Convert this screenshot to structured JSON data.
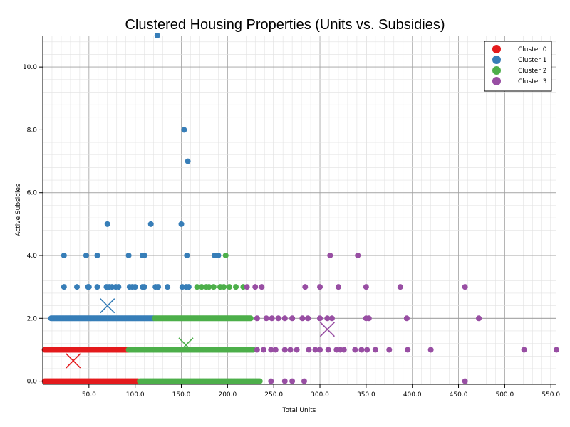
{
  "chart_data": {
    "type": "scatter",
    "title": "Clustered Housing Properties (Units vs. Subsidies)",
    "xlabel": "Total Units",
    "ylabel": "Active Subsidies",
    "xlim": [
      0,
      556
    ],
    "ylim": [
      -0.1,
      11.0
    ],
    "xticks": [
      50,
      100,
      150,
      200,
      250,
      300,
      350,
      400,
      450,
      500,
      550
    ],
    "xtick_labels": [
      "50.0",
      "100.0",
      "150.0",
      "200.0",
      "250.0",
      "300.0",
      "350.0",
      "400.0",
      "450.0",
      "500.0",
      "550.0"
    ],
    "yticks": [
      0,
      2,
      4,
      6,
      8,
      10
    ],
    "ytick_labels": [
      "0.0",
      "2.0",
      "4.0",
      "6.0",
      "8.0",
      "10.0"
    ],
    "grid": true,
    "legend_position": "top-right",
    "colors": {
      "Cluster 0": "#e41a1c",
      "Cluster 1": "#377eb8",
      "Cluster 2": "#4daf4a",
      "Cluster 3": "#984ea3"
    },
    "series": [
      {
        "name": "Cluster 0",
        "ranges": [
          {
            "y": 0,
            "x_from": 2,
            "x_to": 103
          },
          {
            "y": 1,
            "x_from": 2,
            "x_to": 93
          }
        ],
        "points": [],
        "centroid": {
          "x": 33,
          "y": 0.65
        }
      },
      {
        "name": "Cluster 1",
        "ranges": [
          {
            "y": 2,
            "x_from": 9,
            "x_to": 120
          }
        ],
        "points": [
          {
            "x": 124,
            "y": 11
          },
          {
            "x": 153,
            "y": 8
          },
          {
            "x": 157,
            "y": 7
          },
          {
            "x": 70,
            "y": 5
          },
          {
            "x": 117,
            "y": 5
          },
          {
            "x": 150,
            "y": 5
          },
          {
            "x": 23,
            "y": 4
          },
          {
            "x": 47,
            "y": 4
          },
          {
            "x": 59,
            "y": 4
          },
          {
            "x": 93,
            "y": 4
          },
          {
            "x": 108,
            "y": 4
          },
          {
            "x": 110,
            "y": 4
          },
          {
            "x": 156,
            "y": 4
          },
          {
            "x": 186,
            "y": 4
          },
          {
            "x": 190,
            "y": 4
          },
          {
            "x": 23,
            "y": 3
          },
          {
            "x": 37,
            "y": 3
          },
          {
            "x": 49,
            "y": 3
          },
          {
            "x": 50,
            "y": 3
          },
          {
            "x": 59,
            "y": 3
          },
          {
            "x": 69,
            "y": 3
          },
          {
            "x": 72,
            "y": 3
          },
          {
            "x": 75,
            "y": 3
          },
          {
            "x": 79,
            "y": 3
          },
          {
            "x": 82,
            "y": 3
          },
          {
            "x": 94,
            "y": 3
          },
          {
            "x": 97,
            "y": 3
          },
          {
            "x": 100,
            "y": 3
          },
          {
            "x": 108,
            "y": 3
          },
          {
            "x": 110,
            "y": 3
          },
          {
            "x": 122,
            "y": 3
          },
          {
            "x": 125,
            "y": 3
          },
          {
            "x": 135,
            "y": 3
          },
          {
            "x": 151,
            "y": 3
          },
          {
            "x": 155,
            "y": 3
          },
          {
            "x": 158,
            "y": 3
          }
        ],
        "centroid": {
          "x": 70,
          "y": 2.4
        }
      },
      {
        "name": "Cluster 2",
        "ranges": [
          {
            "y": 0,
            "x_from": 105,
            "x_to": 235
          },
          {
            "y": 1,
            "x_from": 93,
            "x_to": 228
          },
          {
            "y": 2,
            "x_from": 121,
            "x_to": 225
          }
        ],
        "points": [
          {
            "x": 198,
            "y": 4
          },
          {
            "x": 167,
            "y": 3
          },
          {
            "x": 172,
            "y": 3
          },
          {
            "x": 177,
            "y": 3
          },
          {
            "x": 180,
            "y": 3
          },
          {
            "x": 185,
            "y": 3
          },
          {
            "x": 192,
            "y": 3
          },
          {
            "x": 196,
            "y": 3
          },
          {
            "x": 202,
            "y": 3
          },
          {
            "x": 209,
            "y": 3
          },
          {
            "x": 217,
            "y": 3
          }
        ],
        "centroid": {
          "x": 155,
          "y": 1.15
        }
      },
      {
        "name": "Cluster 3",
        "ranges": [],
        "points": [
          {
            "x": 311,
            "y": 4
          },
          {
            "x": 341,
            "y": 4
          },
          {
            "x": 221,
            "y": 3
          },
          {
            "x": 230,
            "y": 3
          },
          {
            "x": 237,
            "y": 3
          },
          {
            "x": 284,
            "y": 3
          },
          {
            "x": 300,
            "y": 3
          },
          {
            "x": 320,
            "y": 3
          },
          {
            "x": 350,
            "y": 3
          },
          {
            "x": 387,
            "y": 3
          },
          {
            "x": 457,
            "y": 3
          },
          {
            "x": 232,
            "y": 2
          },
          {
            "x": 242,
            "y": 2
          },
          {
            "x": 248,
            "y": 2
          },
          {
            "x": 255,
            "y": 2
          },
          {
            "x": 262,
            "y": 2
          },
          {
            "x": 270,
            "y": 2
          },
          {
            "x": 281,
            "y": 2
          },
          {
            "x": 287,
            "y": 2
          },
          {
            "x": 300,
            "y": 2
          },
          {
            "x": 308,
            "y": 2
          },
          {
            "x": 313,
            "y": 2
          },
          {
            "x": 350,
            "y": 2
          },
          {
            "x": 353,
            "y": 2
          },
          {
            "x": 394,
            "y": 2
          },
          {
            "x": 472,
            "y": 2
          },
          {
            "x": 232,
            "y": 1
          },
          {
            "x": 239,
            "y": 1
          },
          {
            "x": 247,
            "y": 1
          },
          {
            "x": 252,
            "y": 1
          },
          {
            "x": 262,
            "y": 1
          },
          {
            "x": 268,
            "y": 1
          },
          {
            "x": 275,
            "y": 1
          },
          {
            "x": 288,
            "y": 1
          },
          {
            "x": 295,
            "y": 1
          },
          {
            "x": 300,
            "y": 1
          },
          {
            "x": 309,
            "y": 1
          },
          {
            "x": 318,
            "y": 1
          },
          {
            "x": 322,
            "y": 1
          },
          {
            "x": 326,
            "y": 1
          },
          {
            "x": 338,
            "y": 1
          },
          {
            "x": 345,
            "y": 1
          },
          {
            "x": 351,
            "y": 1
          },
          {
            "x": 360,
            "y": 1
          },
          {
            "x": 375,
            "y": 1
          },
          {
            "x": 395,
            "y": 1
          },
          {
            "x": 420,
            "y": 1
          },
          {
            "x": 521,
            "y": 1
          },
          {
            "x": 556,
            "y": 1
          },
          {
            "x": 247,
            "y": 0
          },
          {
            "x": 262,
            "y": 0
          },
          {
            "x": 270,
            "y": 0
          },
          {
            "x": 283,
            "y": 0
          },
          {
            "x": 457,
            "y": 0
          }
        ],
        "centroid": {
          "x": 308,
          "y": 1.65
        }
      }
    ]
  }
}
